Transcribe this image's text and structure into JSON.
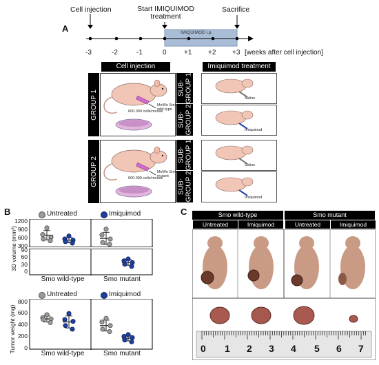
{
  "panel_a": {
    "letter": "A",
    "timeline": {
      "event_cell_injection": "Cell injection",
      "event_start": "Start IMIQUIMOD\ntreatment",
      "event_sacrifice": "Sacrifice",
      "treatment_bar": "IMIQUIMOD i.p.",
      "ticks": [
        "-3",
        "-2",
        "-1",
        "0",
        "+1",
        "+2",
        "+3"
      ],
      "axis_label": "[weeks after cell injection]"
    },
    "header_cell_injection": "Cell injection",
    "header_imiquimod": "Imiquimod treatment",
    "group1": {
      "label": "GROUP 1",
      "cells": "600.000 cells/mouse",
      "line": "MeWo Smo\nwild-type",
      "sub1": "SUB-\nGROUP 1",
      "sub2": "SUB-\nGROUP 2",
      "sub1_tx": "Saline",
      "sub2_tx": "Imiquimod"
    },
    "group2": {
      "label": "GROUP 2",
      "cells": "600.000 cells/mouse",
      "line": "MeWo Smo\nmutant",
      "sub1": "SUB-\nGROUP 1",
      "sub2": "SUB-\nGROUP 2",
      "sub1_tx": "Saline",
      "sub2_tx": "Imiquimod"
    }
  },
  "panel_b": {
    "letter": "B",
    "legend_untreated": "Untreated",
    "legend_imiquimod": "Imiquimod",
    "colors": {
      "untreated": "#9a9a9a",
      "imiquimod": "#1f3f9e"
    }
  },
  "panel_c": {
    "letter": "C",
    "header_wt": "Smo wild-type",
    "header_mut": "Smo mutant",
    "sub_headers": [
      "Untreated",
      "Imiquimod",
      "Untreated",
      "Imiquimod"
    ],
    "ruler_numbers": [
      "0",
      "1",
      "2",
      "3",
      "4",
      "5",
      "6",
      "7"
    ]
  },
  "chart_data": [
    {
      "type": "scatter",
      "title": "",
      "ylabel": "3D volume (mm³)",
      "y_break": true,
      "ylim_upper": [
        300,
        1200
      ],
      "ylim_lower": [
        0,
        90
      ],
      "yticks_upper": [
        "1200",
        "900",
        "600",
        "300"
      ],
      "yticks_lower": [
        "90",
        "60",
        "30",
        "0"
      ],
      "categories": [
        "Smo wild-type",
        "Smo mutant"
      ],
      "series": [
        {
          "name": "Untreated",
          "group": "Smo wild-type",
          "values": [
            940,
            710,
            620,
            560,
            500
          ],
          "mean": 690,
          "sd": 160
        },
        {
          "name": "Imiquimod",
          "group": "Smo wild-type",
          "values": [
            660,
            560,
            520,
            470,
            420
          ],
          "mean": 520,
          "sd": 90
        },
        {
          "name": "Untreated",
          "group": "Smo mutant",
          "values": [
            900,
            700,
            560,
            440,
            380
          ],
          "mean": 580,
          "sd": 210
        },
        {
          "name": "Imiquimod",
          "group": "Smo mutant",
          "values": [
            55,
            48,
            42,
            36,
            28
          ],
          "mean": 42,
          "sd": 10
        }
      ]
    },
    {
      "type": "scatter",
      "title": "",
      "ylabel": "Tumor weight (mg)",
      "ylim": [
        0,
        800
      ],
      "yticks": [
        "800",
        "600",
        "400",
        "200",
        "0"
      ],
      "categories": [
        "Smo wild-type",
        "Smo mutant"
      ],
      "series": [
        {
          "name": "Untreated",
          "group": "Smo wild-type",
          "values": [
            560,
            510,
            490,
            480,
            430
          ],
          "mean": 490,
          "sd": 50
        },
        {
          "name": "Imiquimod",
          "group": "Smo wild-type",
          "values": [
            580,
            480,
            450,
            380,
            320
          ],
          "mean": 440,
          "sd": 100
        },
        {
          "name": "Untreated",
          "group": "Smo mutant",
          "values": [
            500,
            440,
            380,
            320,
            280
          ],
          "mean": 380,
          "sd": 90
        },
        {
          "name": "Imiquimod",
          "group": "Smo mutant",
          "values": [
            230,
            200,
            180,
            140,
            110
          ],
          "mean": 170,
          "sd": 45
        }
      ]
    }
  ]
}
